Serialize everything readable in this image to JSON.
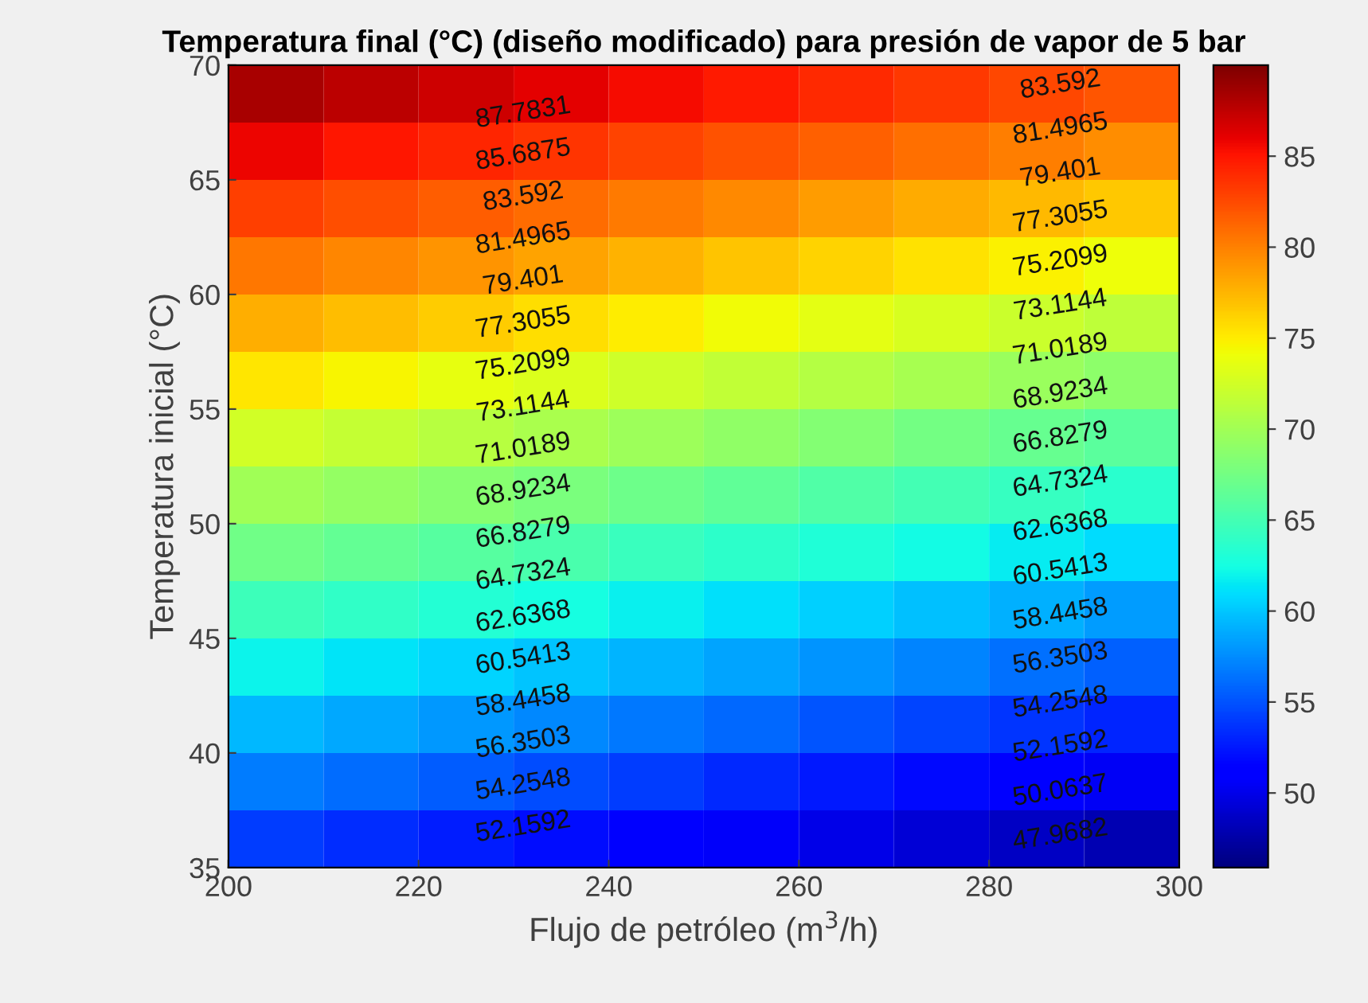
{
  "chart_data": {
    "type": "heatmap",
    "title": "Temperatura final (°C) (diseño modificado) para presión de vapor de 5 bar",
    "xlabel": "Flujo de petróleo (m$^{3}$/h)",
    "ylabel": "Temperatura inicial (°C)",
    "x": [
      205,
      215,
      225,
      235,
      245,
      255,
      265,
      275,
      285,
      295
    ],
    "y": [
      68.75,
      66.25,
      63.75,
      61.25,
      58.75,
      56.25,
      53.75,
      51.25,
      48.75,
      46.25,
      43.75,
      41.25,
      38.75,
      36.25
    ],
    "cells": [
      [
        88.3,
        87.6,
        86.9,
        86.2,
        85.5,
        84.8,
        84.1,
        83.4,
        82.7,
        82.0
      ],
      [
        85.7,
        85.0,
        84.3,
        83.6,
        82.9,
        82.2,
        81.5,
        80.8,
        80.1,
        79.4
      ],
      [
        83.0,
        82.3,
        81.6,
        80.9,
        80.2,
        79.5,
        78.8,
        78.1,
        77.4,
        76.7
      ],
      [
        80.4,
        79.7,
        79.0,
        78.3,
        77.6,
        76.9,
        76.2,
        75.5,
        74.8,
        74.1
      ],
      [
        77.8,
        77.1,
        76.4,
        75.7,
        75.0,
        74.3,
        73.6,
        72.9,
        72.2,
        71.5
      ],
      [
        75.2,
        74.5,
        73.8,
        73.1,
        72.4,
        71.7,
        71.0,
        70.3,
        69.6,
        68.9
      ],
      [
        72.5,
        71.8,
        71.1,
        70.4,
        69.7,
        69.0,
        68.3,
        67.6,
        66.9,
        66.2
      ],
      [
        69.9,
        69.2,
        68.5,
        67.8,
        67.1,
        66.4,
        65.7,
        65.0,
        64.3,
        63.6
      ],
      [
        67.3,
        66.6,
        65.9,
        65.2,
        64.5,
        63.8,
        63.1,
        62.4,
        61.7,
        61.0
      ],
      [
        64.6,
        63.9,
        63.2,
        62.5,
        61.8,
        61.1,
        60.4,
        59.7,
        59.0,
        58.3
      ],
      [
        62.0,
        61.3,
        60.6,
        59.9,
        59.2,
        58.5,
        57.8,
        57.1,
        56.4,
        55.7
      ],
      [
        59.4,
        58.7,
        58.0,
        57.3,
        56.6,
        55.9,
        55.2,
        54.5,
        53.8,
        53.1
      ],
      [
        56.8,
        56.1,
        55.4,
        54.7,
        54.0,
        53.3,
        52.6,
        51.9,
        51.2,
        50.5
      ],
      [
        54.1,
        53.4,
        52.7,
        52.0,
        51.3,
        50.6,
        49.9,
        49.2,
        48.5,
        47.8
      ]
    ],
    "clim": [
      45.9,
      90
    ],
    "cticks": [
      50,
      55,
      60,
      65,
      70,
      75,
      80,
      85
    ],
    "xlim": [
      200,
      300
    ],
    "xticks": [
      200,
      220,
      240,
      260,
      280,
      300
    ],
    "ylim": [
      35,
      70
    ],
    "yticks": [
      35,
      40,
      45,
      50,
      55,
      60,
      65,
      70
    ],
    "annotations": [
      "87.7831",
      "85.6875",
      "83.592",
      "81.4965",
      "79.401",
      "77.3055",
      "75.2099",
      "73.1144",
      "71.0189",
      "68.9234",
      "66.8279",
      "64.7324",
      "62.6368",
      "60.5413",
      "58.4458",
      "56.3503",
      "54.2548",
      "52.1592",
      "83.592",
      "81.4965",
      "79.401",
      "77.3055",
      "75.2099",
      "73.1144",
      "71.0189",
      "68.9234",
      "66.8279",
      "64.7324",
      "62.6368",
      "60.5413",
      "58.4458",
      "56.3503",
      "54.2548",
      "52.1592",
      "50.0637",
      "47.9682"
    ]
  }
}
